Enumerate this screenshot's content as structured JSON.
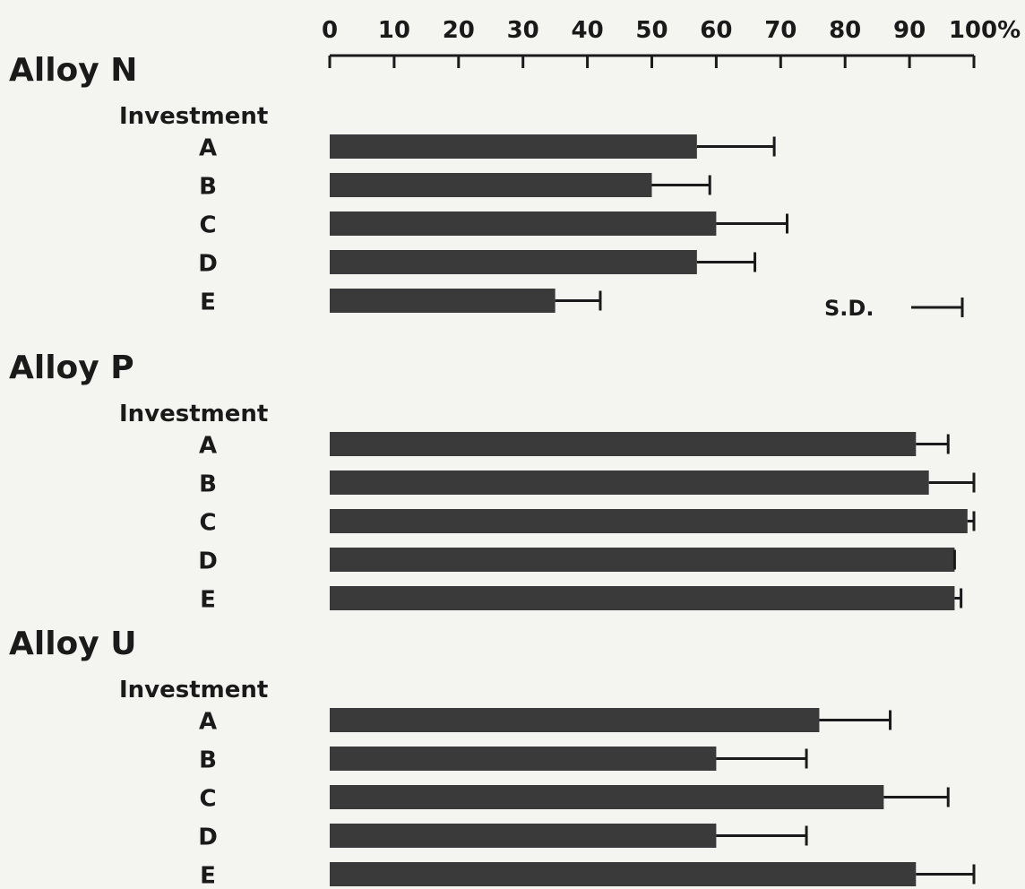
{
  "chart_data": {
    "type": "bar",
    "orientation": "horizontal",
    "axis": {
      "ticks": [
        "0",
        "10",
        "20",
        "30",
        "40",
        "50",
        "60",
        "70",
        "80",
        "90",
        "100%"
      ],
      "xlim": [
        0,
        100
      ],
      "position": "top"
    },
    "legend": {
      "label": "S.D.",
      "placement": "right of Alloy N group"
    },
    "grid": false,
    "bar_color": "#3a3a3a",
    "groups": [
      {
        "name": "Alloy N",
        "sublabel": "Investment",
        "categories": [
          "A",
          "B",
          "C",
          "D",
          "E"
        ],
        "values": [
          57,
          50,
          60,
          57,
          35
        ],
        "sd": [
          12,
          9,
          11,
          9,
          7
        ]
      },
      {
        "name": "Alloy P",
        "sublabel": "Investment",
        "categories": [
          "A",
          "B",
          "C",
          "D",
          "E"
        ],
        "values": [
          91,
          93,
          99,
          97,
          97
        ],
        "sd": [
          5,
          7,
          1,
          0,
          1
        ]
      },
      {
        "name": "Alloy U",
        "sublabel": "Investment",
        "categories": [
          "A",
          "B",
          "C",
          "D",
          "E"
        ],
        "values": [
          76,
          60,
          86,
          60,
          91
        ],
        "sd": [
          11,
          14,
          10,
          14,
          9
        ]
      }
    ]
  }
}
